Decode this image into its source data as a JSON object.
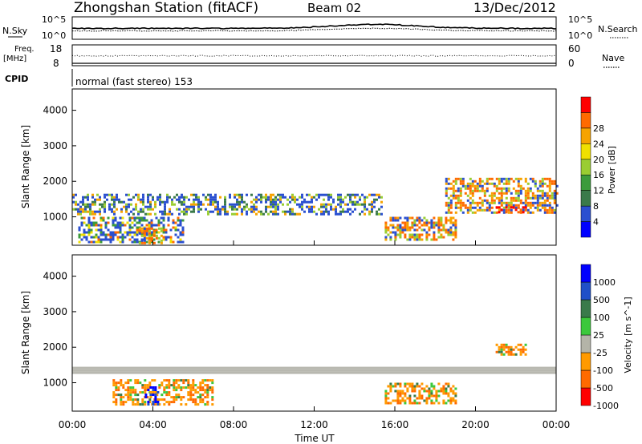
{
  "header": {
    "station": "Zhongshan Station (fitACF)",
    "beam": "Beam 02",
    "date": "13/Dec/2012"
  },
  "nsky_panel": {
    "left_label": "N.Sky",
    "right_label": "N.Search",
    "top_tick_left": "10^5",
    "bottom_tick_left": "10^0",
    "top_tick_right": "10^5",
    "bottom_tick_right": "10^0"
  },
  "freq_panel": {
    "left_label_top": "Freq.",
    "left_label_bottom": "[MHz]",
    "right_label": "Nave",
    "left_ticks": [
      "18",
      "8"
    ],
    "right_ticks": [
      "60",
      "0"
    ]
  },
  "cpid": {
    "label": "CPID",
    "mode": "normal (fast stereo) 153"
  },
  "colors": {
    "scale": [
      "#0000ff",
      "#2a4fd0",
      "#3a7a4a",
      "#3c9b3c",
      "#9acd32",
      "#f0e000",
      "#f6a300",
      "#ff6a00",
      "#ff0000"
    ],
    "velocity": [
      "#0000ff",
      "#2050c8",
      "#3a7a4a",
      "#3cc83c",
      "#b4b4a8",
      "#ff9a00",
      "#ff6a00",
      "#ff0000"
    ],
    "ground": "#b8b8b0"
  },
  "chart_data": [
    {
      "type": "heatmap",
      "panel": "power",
      "ylabel": "Slant Range [km]",
      "y_ticks": [
        1000,
        2000,
        3000,
        4000
      ],
      "ylim": [
        200,
        4600
      ],
      "xlim_hours": [
        0,
        24
      ],
      "colorbar": {
        "label": "Power [dB]",
        "ticks": [
          "4",
          "8",
          "12",
          "16",
          "20",
          "24",
          "28"
        ],
        "range": [
          0,
          32
        ]
      },
      "echo_regions": [
        {
          "hours": [
            0,
            15.4
          ],
          "range_km": [
            1100,
            1650
          ],
          "level": "medium"
        },
        {
          "hours": [
            0.3,
            5.5
          ],
          "range_km": [
            300,
            1000
          ],
          "level": "mixed"
        },
        {
          "hours": [
            3.3,
            4.4
          ],
          "range_km": [
            250,
            700
          ],
          "level": "high"
        },
        {
          "hours": [
            15.5,
            19
          ],
          "range_km": [
            350,
            1000
          ],
          "level": "high"
        },
        {
          "hours": [
            18.5,
            24
          ],
          "range_km": [
            1100,
            2100
          ],
          "level": "high"
        },
        {
          "hours": [
            21,
            22.5
          ],
          "range_km": [
            1100,
            1300
          ],
          "level": "very-high"
        }
      ]
    },
    {
      "type": "heatmap",
      "panel": "velocity",
      "ylabel": "Slant Range [km]",
      "y_ticks": [
        1000,
        2000,
        3000,
        4000
      ],
      "ylim": [
        200,
        4600
      ],
      "xlim_hours": [
        0,
        24
      ],
      "colorbar": {
        "label": "Velocity [m s^-1]",
        "ticks": [
          "1000",
          "500",
          "100",
          "25",
          "-25",
          "-100",
          "-500",
          "-1000"
        ]
      },
      "echo_regions": [
        {
          "hours": [
            0,
            24
          ],
          "range_km": [
            1250,
            1450
          ],
          "level": "ground-scatter"
        },
        {
          "hours": [
            2,
            7
          ],
          "range_km": [
            400,
            1100
          ],
          "level": "negative"
        },
        {
          "hours": [
            3.6,
            4.3
          ],
          "range_km": [
            400,
            900
          ],
          "level": "high-positive"
        },
        {
          "hours": [
            15.5,
            19
          ],
          "range_km": [
            400,
            1000
          ],
          "level": "negative"
        },
        {
          "hours": [
            21,
            22.5
          ],
          "range_km": [
            1800,
            2100
          ],
          "level": "negative"
        }
      ]
    }
  ],
  "x_axis": {
    "ticks": [
      "00:00",
      "04:00",
      "08:00",
      "12:00",
      "16:00",
      "20:00",
      "00:00"
    ],
    "label": "Time UT"
  }
}
